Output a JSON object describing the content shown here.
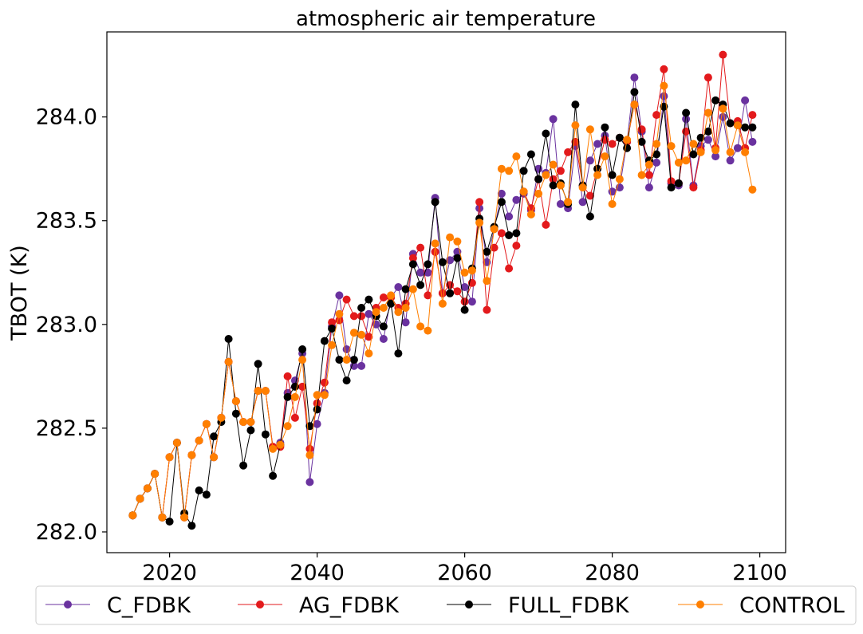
{
  "chart_data": {
    "type": "line",
    "title": "atmospheric air temperature",
    "xlabel": "",
    "ylabel": "TBOT (K)",
    "xlim": [
      2011.5,
      2103.5
    ],
    "ylim": [
      281.9,
      284.41
    ],
    "xticks": [
      2020,
      2040,
      2060,
      2080,
      2100
    ],
    "yticks": [
      282.0,
      282.5,
      283.0,
      283.5,
      284.0
    ],
    "xtick_labels": [
      "2020",
      "2040",
      "2060",
      "2080",
      "2100"
    ],
    "ytick_labels": [
      "282.0",
      "282.5",
      "283.0",
      "283.5",
      "284.0"
    ],
    "legend_position": "bottom, below plot, 4 columns",
    "grid": false,
    "x": [
      2015,
      2016,
      2017,
      2018,
      2019,
      2020,
      2021,
      2022,
      2023,
      2024,
      2025,
      2026,
      2027,
      2028,
      2029,
      2030,
      2031,
      2032,
      2033,
      2034,
      2035,
      2036,
      2037,
      2038,
      2039,
      2040,
      2041,
      2042,
      2043,
      2044,
      2045,
      2046,
      2047,
      2048,
      2049,
      2050,
      2051,
      2052,
      2053,
      2054,
      2055,
      2056,
      2057,
      2058,
      2059,
      2060,
      2061,
      2062,
      2063,
      2064,
      2065,
      2066,
      2067,
      2068,
      2069,
      2070,
      2071,
      2072,
      2073,
      2074,
      2075,
      2076,
      2077,
      2078,
      2079,
      2080,
      2081,
      2082,
      2083,
      2084,
      2085,
      2086,
      2087,
      2088,
      2089,
      2090,
      2091,
      2092,
      2093,
      2094,
      2095,
      2096,
      2097,
      2098,
      2099
    ],
    "series": [
      {
        "name": "C_FDBK",
        "color": "#6a329f",
        "values": [
          282.08,
          282.16,
          282.21,
          282.28,
          282.07,
          282.36,
          282.43,
          282.07,
          282.37,
          282.44,
          282.52,
          282.36,
          282.55,
          282.82,
          282.63,
          282.53,
          282.53,
          282.68,
          282.68,
          282.41,
          282.43,
          282.67,
          282.73,
          282.86,
          282.24,
          282.52,
          282.67,
          282.99,
          283.14,
          282.88,
          282.8,
          282.8,
          283.05,
          283.0,
          282.93,
          283.13,
          283.18,
          283.01,
          283.34,
          283.25,
          283.25,
          283.61,
          283.15,
          283.31,
          283.35,
          283.18,
          283.11,
          283.56,
          283.3,
          283.46,
          283.63,
          283.52,
          283.6,
          283.63,
          283.55,
          283.75,
          283.73,
          283.99,
          283.58,
          283.56,
          283.86,
          283.59,
          283.79,
          283.87,
          283.91,
          283.64,
          283.66,
          283.88,
          284.19,
          283.93,
          283.66,
          283.78,
          284.1,
          283.68,
          283.67,
          283.99,
          283.67,
          283.86,
          283.89,
          283.81,
          284.0,
          283.79,
          283.85,
          284.08,
          283.88
        ]
      },
      {
        "name": "AG_FDBK",
        "color": "#e31a1c",
        "values": [
          282.08,
          282.16,
          282.21,
          282.28,
          282.07,
          282.36,
          282.43,
          282.07,
          282.37,
          282.44,
          282.52,
          282.36,
          282.55,
          282.82,
          282.63,
          282.53,
          282.53,
          282.68,
          282.68,
          282.41,
          282.41,
          282.75,
          282.55,
          282.7,
          282.4,
          282.62,
          282.72,
          283.01,
          283.02,
          283.12,
          283.04,
          283.04,
          282.94,
          283.08,
          283.13,
          283.13,
          283.08,
          283.1,
          283.32,
          283.37,
          283.14,
          283.35,
          283.15,
          283.19,
          283.16,
          283.11,
          283.2,
          283.59,
          283.07,
          283.37,
          283.44,
          283.27,
          283.38,
          283.64,
          283.56,
          283.7,
          283.48,
          283.7,
          283.74,
          283.83,
          283.88,
          283.67,
          283.62,
          283.75,
          283.89,
          283.87,
          283.9,
          283.88,
          284.06,
          283.94,
          283.72,
          284.01,
          284.23,
          283.69,
          283.68,
          283.93,
          283.66,
          283.84,
          284.19,
          283.85,
          284.3,
          283.97,
          283.98,
          283.85,
          284.01
        ]
      },
      {
        "name": "FULL_FDBK",
        "color": "#000000",
        "values": [
          282.08,
          282.16,
          282.21,
          282.28,
          282.07,
          282.05,
          282.43,
          282.09,
          282.03,
          282.2,
          282.18,
          282.46,
          282.53,
          282.93,
          282.57,
          282.32,
          282.49,
          282.81,
          282.47,
          282.27,
          282.42,
          282.65,
          282.7,
          282.88,
          282.51,
          282.59,
          282.92,
          282.98,
          282.83,
          282.73,
          282.83,
          283.08,
          283.12,
          283.04,
          282.99,
          283.1,
          282.86,
          283.17,
          283.29,
          283.19,
          283.29,
          283.59,
          283.3,
          283.15,
          283.32,
          283.07,
          283.27,
          283.51,
          283.35,
          283.47,
          283.59,
          283.43,
          283.44,
          283.74,
          283.82,
          283.7,
          283.92,
          283.67,
          283.68,
          283.58,
          284.06,
          283.67,
          283.52,
          283.75,
          283.95,
          283.72,
          283.9,
          283.85,
          284.12,
          283.88,
          283.79,
          283.82,
          284.05,
          283.66,
          283.68,
          284.02,
          283.82,
          283.9,
          283.93,
          284.08,
          284.06,
          283.97,
          283.96,
          283.95,
          283.95
        ]
      },
      {
        "name": "CONTROL",
        "color": "#ff7f00",
        "values": [
          282.08,
          282.16,
          282.21,
          282.28,
          282.07,
          282.36,
          282.43,
          282.07,
          282.37,
          282.44,
          282.52,
          282.36,
          282.55,
          282.82,
          282.63,
          282.53,
          282.53,
          282.68,
          282.68,
          282.4,
          282.42,
          282.51,
          282.65,
          282.83,
          282.37,
          282.66,
          282.66,
          282.9,
          283.05,
          282.83,
          282.96,
          282.95,
          282.86,
          283.06,
          283.08,
          283.14,
          283.06,
          283.08,
          283.17,
          282.99,
          282.97,
          283.39,
          283.1,
          283.42,
          283.4,
          283.25,
          283.26,
          283.49,
          283.21,
          283.46,
          283.75,
          283.74,
          283.81,
          283.64,
          283.53,
          283.63,
          283.72,
          283.77,
          283.67,
          283.59,
          283.96,
          283.66,
          283.94,
          283.72,
          283.81,
          283.58,
          283.7,
          283.89,
          284.06,
          283.72,
          283.77,
          283.87,
          284.15,
          283.86,
          283.78,
          283.79,
          283.87,
          283.83,
          284.02,
          283.84,
          284.04,
          283.83,
          283.96,
          283.83,
          283.65
        ]
      }
    ]
  }
}
